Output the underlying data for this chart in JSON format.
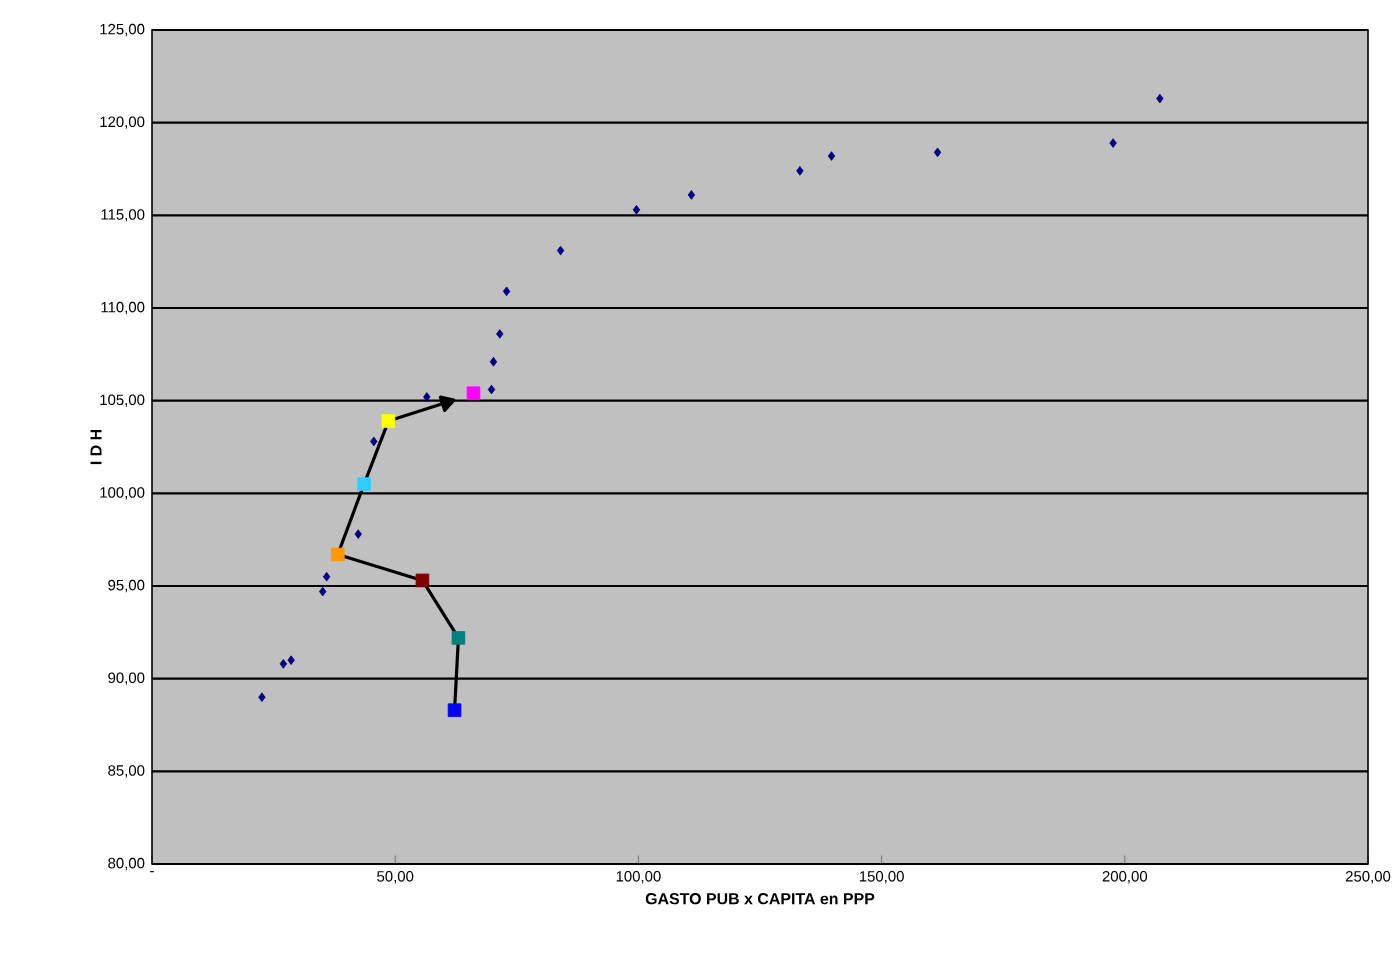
{
  "chart_data": {
    "type": "scatter",
    "xlabel": "GASTO PUB x CAPITA en PPP",
    "ylabel": "I D H",
    "xlim": [
      0,
      250
    ],
    "ylim": [
      80,
      125
    ],
    "xticks": [
      {
        "value": 0,
        "label": "-"
      },
      {
        "value": 50,
        "label": "50,00"
      },
      {
        "value": 100,
        "label": "100,00"
      },
      {
        "value": 150,
        "label": "150,00"
      },
      {
        "value": 200,
        "label": "200,00"
      },
      {
        "value": 250,
        "label": "250,00"
      }
    ],
    "yticks": [
      {
        "value": 80,
        "label": "80,00"
      },
      {
        "value": 85,
        "label": "85,00"
      },
      {
        "value": 90,
        "label": "90,00"
      },
      {
        "value": 95,
        "label": "95,00"
      },
      {
        "value": 100,
        "label": "100,00"
      },
      {
        "value": 105,
        "label": "105,00"
      },
      {
        "value": 110,
        "label": "110,00"
      },
      {
        "value": 115,
        "label": "115,00"
      },
      {
        "value": 120,
        "label": "120,00"
      },
      {
        "value": 125,
        "label": "125,00"
      }
    ],
    "grid": "y",
    "series": [
      {
        "marker": "diamond",
        "color": "#000080",
        "x": [
          22.6,
          27.0,
          28.6,
          35.1,
          35.9,
          42.4,
          45.6,
          56.5,
          69.8,
          70.2,
          71.5,
          72.9,
          84.0,
          99.6,
          110.9,
          133.2,
          139.7,
          161.5,
          197.6,
          207.2
        ],
        "values": [
          89.0,
          90.8,
          91.0,
          94.7,
          95.5,
          97.8,
          102.8,
          105.2,
          105.6,
          107.1,
          108.6,
          110.9,
          113.1,
          115.3,
          116.1,
          117.4,
          118.2,
          118.4,
          118.9,
          121.3
        ]
      },
      {
        "type": "line",
        "marker": "none",
        "line_style": "solid",
        "color": "#000000",
        "x": [
          62.2,
          63.0,
          55.6,
          38.2,
          43.6,
          48.6,
          60.5
        ],
        "values": [
          88.3,
          92.2,
          95.3,
          96.7,
          100.5,
          103.9,
          104.9
        ]
      },
      {
        "marker": "square",
        "colors": [
          "#0000ff",
          "#008080",
          "#800000",
          "#ff9900",
          "#33ccff",
          "#ffff00",
          "#ff00ff"
        ],
        "x": [
          62.2,
          63.0,
          55.6,
          38.2,
          43.6,
          48.6,
          66.1
        ],
        "values": [
          88.3,
          92.2,
          95.3,
          96.7,
          100.5,
          103.9,
          105.4
        ]
      }
    ]
  }
}
